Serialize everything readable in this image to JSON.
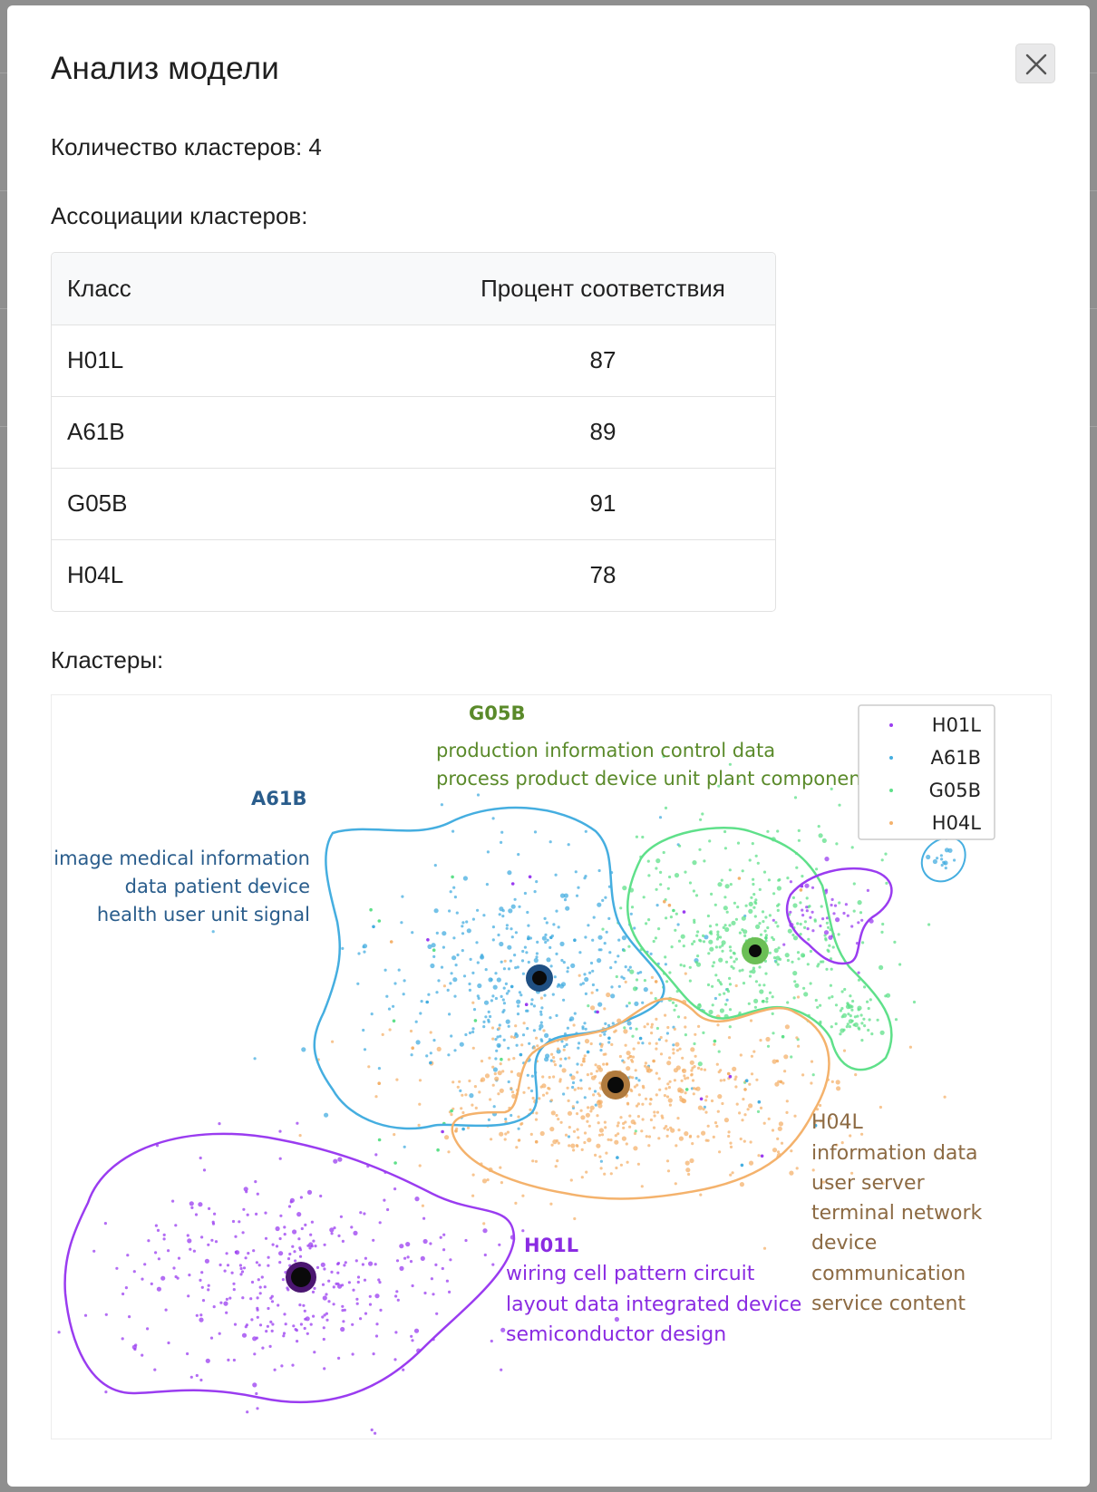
{
  "modal": {
    "title": "Анализ модели",
    "close_icon": "close-icon"
  },
  "summary": {
    "cluster_count_text": "Количество кластеров: 4",
    "associations_heading": "Ассоциации кластеров:",
    "clusters_heading": "Кластеры:"
  },
  "table": {
    "headers": [
      "Класс",
      "Процент соответствия"
    ],
    "rows": [
      {
        "cls": "H01L",
        "pct": "87"
      },
      {
        "cls": "A61B",
        "pct": "89"
      },
      {
        "cls": "G05B",
        "pct": "91"
      },
      {
        "cls": "H04L",
        "pct": "78"
      }
    ]
  },
  "chart_data": {
    "type": "scatter",
    "legend": {
      "position": "top-right",
      "entries": [
        "H01L",
        "A61B",
        "G05B",
        "H04L"
      ]
    },
    "clusters": [
      {
        "name": "G05B",
        "color": "#5fe08a",
        "label_color": "#5a8a2a",
        "keywords": [
          "production information control data",
          "process product device unit plant component"
        ]
      },
      {
        "name": "A61B",
        "color": "#45aee0",
        "label_color": "#2a5d8c",
        "keywords": [
          "image medical information",
          "data patient device",
          "health user unit signal"
        ]
      },
      {
        "name": "H04L",
        "color": "#f4b26c",
        "label_color": "#8c6a43",
        "keywords": [
          "information data",
          "user server",
          "terminal network",
          "device",
          "communication",
          "service content"
        ]
      },
      {
        "name": "H01L",
        "color": "#9a3cf0",
        "label_color": "#8a2be2",
        "keywords": [
          "wiring cell pattern circuit",
          "layout data integrated device",
          "semiconductor design"
        ]
      }
    ],
    "grid": false
  }
}
